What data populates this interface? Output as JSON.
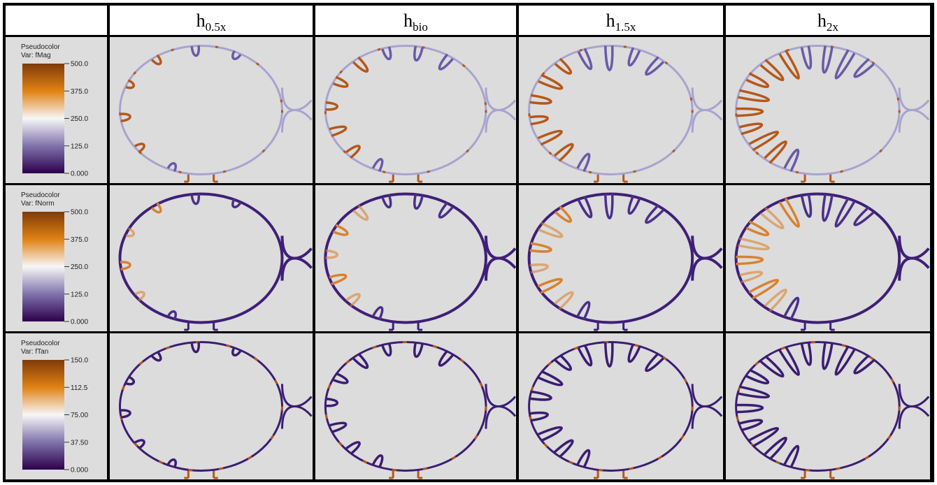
{
  "header": {
    "columns": [
      {
        "base": "h",
        "sub": "0.5x"
      },
      {
        "base": "h",
        "sub": "bio"
      },
      {
        "base": "h",
        "sub": "1.5x"
      },
      {
        "base": "h",
        "sub": "2x"
      }
    ]
  },
  "rows": [
    {
      "legend": {
        "title": "Pseudocolor",
        "var": "Var: fMag",
        "ticks": [
          "500.0",
          "375.0",
          "250.0",
          "125.0",
          "0.000"
        ]
      }
    },
    {
      "legend": {
        "title": "Pseudocolor",
        "var": "Var: fNorm",
        "ticks": [
          "500.0",
          "375.0",
          "250.0",
          "125.0",
          "0.000"
        ]
      }
    },
    {
      "legend": {
        "title": "Pseudocolor",
        "var": "Var: fTan",
        "ticks": [
          "150.0",
          "112.5",
          "75.00",
          "37.50",
          "0.000"
        ]
      }
    }
  ]
}
